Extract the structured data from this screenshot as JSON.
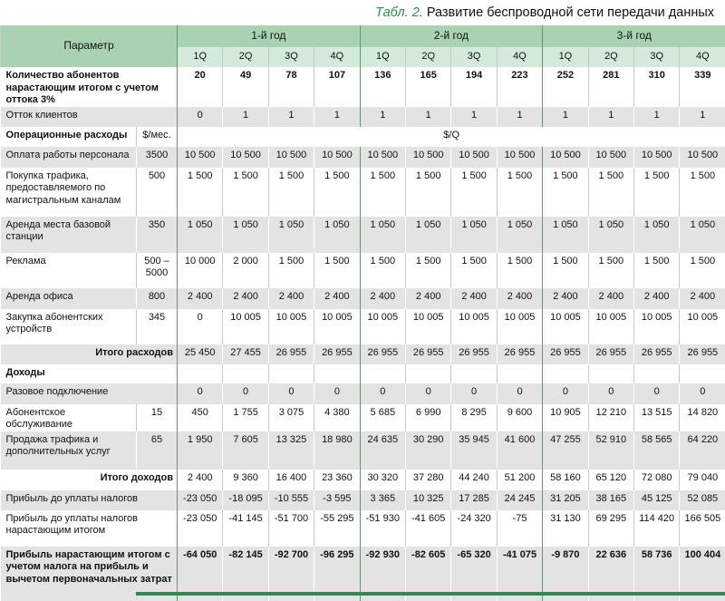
{
  "caption": {
    "label": "Табл. 2.",
    "text": "Развитие беспроводной сети передачи данных"
  },
  "header": {
    "parameter": "Параметр",
    "years": [
      "1-й год",
      "2-й год",
      "3-й год"
    ],
    "quarters": [
      "1Q",
      "2Q",
      "3Q",
      "4Q",
      "1Q",
      "2Q",
      "3Q",
      "4Q",
      "1Q",
      "2Q",
      "3Q",
      "4Q"
    ]
  },
  "table": {
    "rows": [
      {
        "label": "Количество абонентов нарастающим итогом с учетом оттока 3%",
        "bold": true,
        "values": [
          "20",
          "49",
          "78",
          "107",
          "136",
          "165",
          "194",
          "223",
          "252",
          "281",
          "310",
          "339"
        ]
      },
      {
        "label": "Отток клиентов",
        "values": [
          "0",
          "1",
          "1",
          "1",
          "1",
          "1",
          "1",
          "1",
          "1",
          "1",
          "1",
          "1"
        ]
      },
      {
        "label": "Операционные расходы",
        "bold": true,
        "unit": "$/мес.",
        "span": "$/Q"
      },
      {
        "label": "Оплата работы персонала",
        "unit": "3500",
        "values": [
          "10 500",
          "10 500",
          "10 500",
          "10 500",
          "10 500",
          "10 500",
          "10 500",
          "10 500",
          "10 500",
          "10 500",
          "10 500",
          "10 500"
        ]
      },
      {
        "label": "Покупка трафика, предоставляемого по магистральным каналам",
        "unit": "500",
        "values": [
          "1 500",
          "1 500",
          "1 500",
          "1 500",
          "1 500",
          "1 500",
          "1 500",
          "1 500",
          "1 500",
          "1 500",
          "1 500",
          "1 500"
        ]
      },
      {
        "label": "Аренда места базовой станции",
        "unit": "350",
        "values": [
          "1 050",
          "1 050",
          "1 050",
          "1 050",
          "1 050",
          "1 050",
          "1 050",
          "1 050",
          "1 050",
          "1 050",
          "1 050",
          "1 050"
        ]
      },
      {
        "label": "Реклама",
        "unit": "500 – 5000",
        "values": [
          "10 000",
          "2 000",
          "1 500",
          "1 500",
          "1 500",
          "1 500",
          "1 500",
          "1 500",
          "1 500",
          "1 500",
          "1 500",
          "1 500"
        ]
      },
      {
        "label": "Аренда офиса",
        "unit": "800",
        "values": [
          "2 400",
          "2 400",
          "2 400",
          "2 400",
          "2 400",
          "2 400",
          "2 400",
          "2 400",
          "2 400",
          "2 400",
          "2 400",
          "2 400"
        ]
      },
      {
        "label": "Закупка абонентских устройств",
        "unit": "345",
        "values": [
          "0",
          "10 005",
          "10 005",
          "10 005",
          "10 005",
          "10 005",
          "10 005",
          "10 005",
          "10 005",
          "10 005",
          "10 005",
          "10 005"
        ]
      },
      {
        "label": "Итого расходов",
        "bold": true,
        "total": true,
        "values": [
          "25 450",
          "27 455",
          "26 955",
          "26 955",
          "26 955",
          "26 955",
          "26 955",
          "26 955",
          "26 955",
          "26 955",
          "26 955",
          "26 955"
        ]
      },
      {
        "label": "Доходы",
        "bold": true
      },
      {
        "label": "Разовое подключение",
        "values": [
          "0",
          "0",
          "0",
          "0",
          "0",
          "0",
          "0",
          "0",
          "0",
          "0",
          "0",
          "0"
        ]
      },
      {
        "label": "Абонентское обслуживание",
        "unit": "15",
        "values": [
          "450",
          "1 755",
          "3 075",
          "4 380",
          "5 685",
          "6 990",
          "8 295",
          "9 600",
          "10 905",
          "12 210",
          "13 515",
          "14 820"
        ]
      },
      {
        "label": "Продажа трафика и дополнительных услуг",
        "unit": "65",
        "values": [
          "1 950",
          "7 605",
          "13 325",
          "18 980",
          "24 635",
          "30 290",
          "35 945",
          "41 600",
          "47 255",
          "52 910",
          "58 565",
          "64 220"
        ]
      },
      {
        "label": "Итого доходов",
        "bold": true,
        "total": true,
        "values": [
          "2 400",
          "9 360",
          "16 400",
          "23 360",
          "30 320",
          "37 280",
          "44 240",
          "51 200",
          "58 160",
          "65 120",
          "72 080",
          "79 040"
        ]
      },
      {
        "label": "Прибыль до уплаты налогов",
        "values": [
          "-23 050",
          "-18 095",
          "-10 555",
          "-3 595",
          "3 365",
          "10 325",
          "17 285",
          "24 245",
          "31 205",
          "38 165",
          "45 125",
          "52 085"
        ]
      },
      {
        "label": "Прибыль до уплаты налогов нарастающим итогом",
        "values": [
          "-23 050",
          "-41 145",
          "-51 700",
          "-55 295",
          "-51 930",
          "-41 605",
          "-24 320",
          "-75",
          "31 130",
          "69 295",
          "114 420",
          "166 505"
        ]
      },
      {
        "label": "Прибыль нарастающим итогом с учетом налога на прибыль и вычетом первоначальных затрат",
        "bold": true,
        "values": [
          "-64 050",
          "-82 145",
          "-92 700",
          "-96 295",
          "-92 930",
          "-82 605",
          "-65 320",
          "-41 075",
          "-9 870",
          "22 636",
          "58 736",
          "100 404"
        ]
      }
    ]
  }
}
